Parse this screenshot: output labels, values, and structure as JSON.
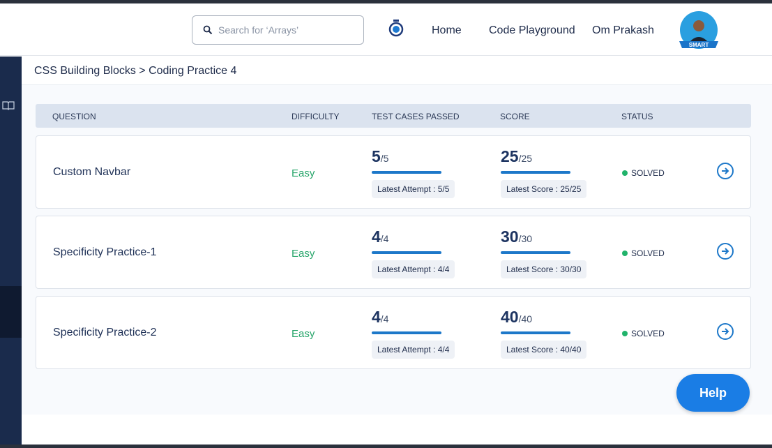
{
  "header": {
    "search_placeholder": "Search for ‘Arrays’",
    "nav": [
      "Home",
      "Code Playground",
      "Om Prakash"
    ],
    "badge": "SMART"
  },
  "breadcrumb": "CSS Building Blocks > Coding Practice 4",
  "table": {
    "columns": [
      "QUESTION",
      "DIFFICULTY",
      "TEST CASES PASSED",
      "SCORE",
      "STATUS"
    ],
    "rows": [
      {
        "question": "Custom Navbar",
        "difficulty": "Easy",
        "passed": "5",
        "passed_total": "/5",
        "attempt": "Latest Attempt : 5/5",
        "score": "25",
        "score_total": "/25",
        "latest_score": "Latest Score : 25/25",
        "status": "SOLVED"
      },
      {
        "question": "Specificity Practice-1",
        "difficulty": "Easy",
        "passed": "4",
        "passed_total": "/4",
        "attempt": "Latest Attempt : 4/4",
        "score": "30",
        "score_total": "/30",
        "latest_score": "Latest Score : 30/30",
        "status": "SOLVED"
      },
      {
        "question": "Specificity Practice-2",
        "difficulty": "Easy",
        "passed": "4",
        "passed_total": "/4",
        "attempt": "Latest Attempt : 4/4",
        "score": "40",
        "score_total": "/40",
        "latest_score": "Latest Score : 40/40",
        "status": "SOLVED"
      }
    ]
  },
  "help": "Help"
}
